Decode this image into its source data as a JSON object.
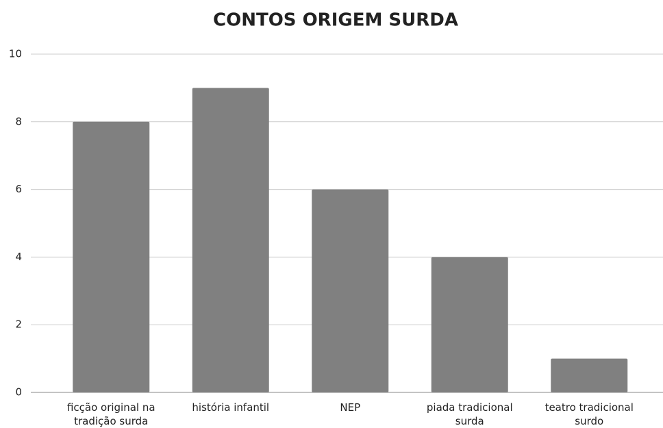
{
  "chart_data": {
    "type": "bar",
    "title": "CONTOS ORIGEM SURDA",
    "categories": [
      "ficção original na tradição surda",
      "história infantil",
      "NEP",
      "piada tradicional surda",
      "teatro tradicional surdo"
    ],
    "values": [
      8,
      9,
      6,
      4,
      1
    ],
    "color": "#808080",
    "ylim": [
      0,
      10
    ],
    "yticks": [
      0,
      2,
      4,
      6,
      8,
      10
    ],
    "grid": true
  }
}
